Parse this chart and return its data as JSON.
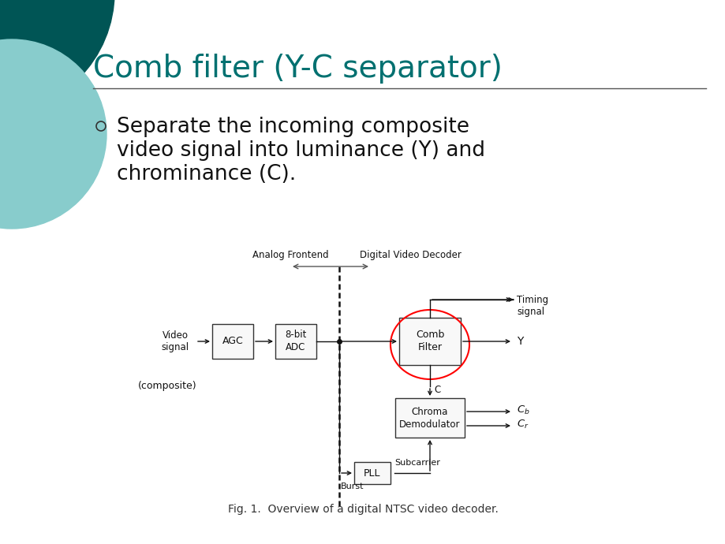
{
  "title": "Comb filter (Y-C separator)",
  "title_color": "#007070",
  "title_fontsize": 28,
  "bg_color": "#ffffff",
  "bullet_text_line1": "Separate the incoming composite",
  "bullet_text_line2": "video signal into luminance (Y) and",
  "bullet_text_line3": "chrominance (C).",
  "bullet_fontsize": 19,
  "caption": "Fig. 1.  Overview of a digital NTSC video decoder.",
  "caption_fontsize": 10,
  "diagram_label_analog": "Analog Frontend",
  "diagram_label_digital": "Digital Video Decoder",
  "diagram_label_video_signal": "Video\nsignal",
  "diagram_label_agc": "AGC",
  "diagram_label_adc": "8-bit\nADC",
  "diagram_label_comb": "Comb\nFilter",
  "diagram_label_chroma": "Chroma\nDemodulator",
  "diagram_label_pll": "PLL",
  "diagram_label_composite": "(composite)",
  "diagram_label_timing": "Timing\nsignal",
  "diagram_label_Y": "Y",
  "diagram_label_C": "C",
  "diagram_label_Cb": "$C_b$",
  "diagram_label_Cr": "$C_r$",
  "diagram_label_subcarrier": "Subcarrier",
  "diagram_label_burst": "Burst",
  "deco_color1": "#005555",
  "deco_color2": "#88cccc"
}
